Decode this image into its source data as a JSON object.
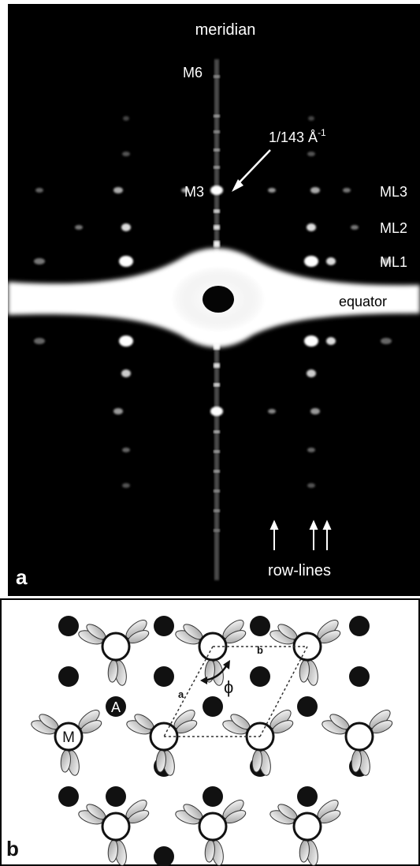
{
  "panel_a": {
    "panel_letter": "a",
    "labels": {
      "meridian": "meridian",
      "m6": "M6",
      "m3": "M3",
      "spacing_main": "1/143 Å",
      "spacing_sup": "-1",
      "ml3": "ML3",
      "ml2": "ML2",
      "ml1": "ML1",
      "equator": "equator",
      "row_lines": "row-lines"
    },
    "colors": {
      "background": "#000000",
      "text": "#ffffff"
    }
  },
  "panel_b": {
    "panel_letter": "b",
    "labels": {
      "lattice_a": "a",
      "lattice_b": "b",
      "angle": "ϕ",
      "myosin": "M",
      "actin": "A"
    },
    "colors": {
      "background": "#ffffff",
      "actin": "#111111",
      "myosin": "#ffffff",
      "heads": "#cfcfcf"
    }
  }
}
